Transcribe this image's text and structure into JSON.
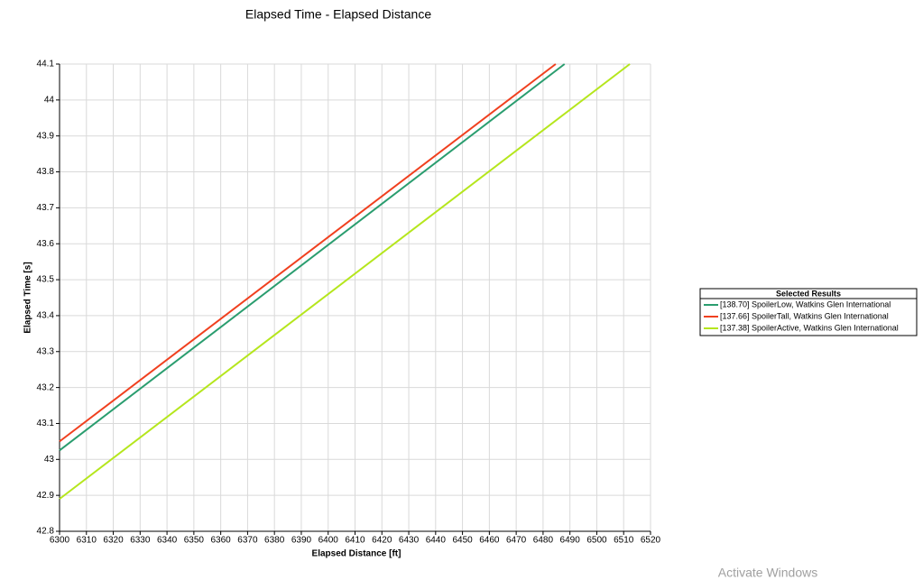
{
  "chart_data": {
    "type": "line",
    "title": "Elapsed Time - Elapsed Distance",
    "x_label": "Elapsed Distance [ft]",
    "y_label": "Elapsed Time [s]",
    "legend_title": "Selected Results",
    "legend_position": "right",
    "grid": true,
    "series": [
      {
        "name": "[138.70] SpoilerLow, Watkins Glen International",
        "color": "#2a9d6f",
        "x": [
          6300,
          6488
        ],
        "values": [
          43.025,
          44.1
        ]
      },
      {
        "name": "[137.66] SpoilerTall, Watkins Glen International",
        "color": "#f0401f",
        "x": [
          6300,
          6484.7
        ],
        "values": [
          43.05,
          44.1
        ]
      },
      {
        "name": "[137.38] SpoilerActive, Watkins Glen International",
        "color": "#b5e61d",
        "x": [
          6300,
          6512.3
        ],
        "values": [
          42.89,
          44.1
        ]
      }
    ],
    "xlim": [
      6300,
      6520
    ],
    "xticks": [
      6300,
      6310,
      6320,
      6330,
      6340,
      6350,
      6360,
      6370,
      6380,
      6390,
      6400,
      6410,
      6420,
      6430,
      6440,
      6450,
      6460,
      6470,
      6480,
      6490,
      6500,
      6510,
      6520
    ],
    "ylim": [
      42.8,
      44.1
    ],
    "yticks": [
      42.8,
      42.9,
      43,
      43.1,
      43.2,
      43.3,
      43.4,
      43.5,
      43.6,
      43.7,
      43.8,
      43.9,
      44,
      44.1
    ]
  },
  "watermark": "Activate Windows"
}
